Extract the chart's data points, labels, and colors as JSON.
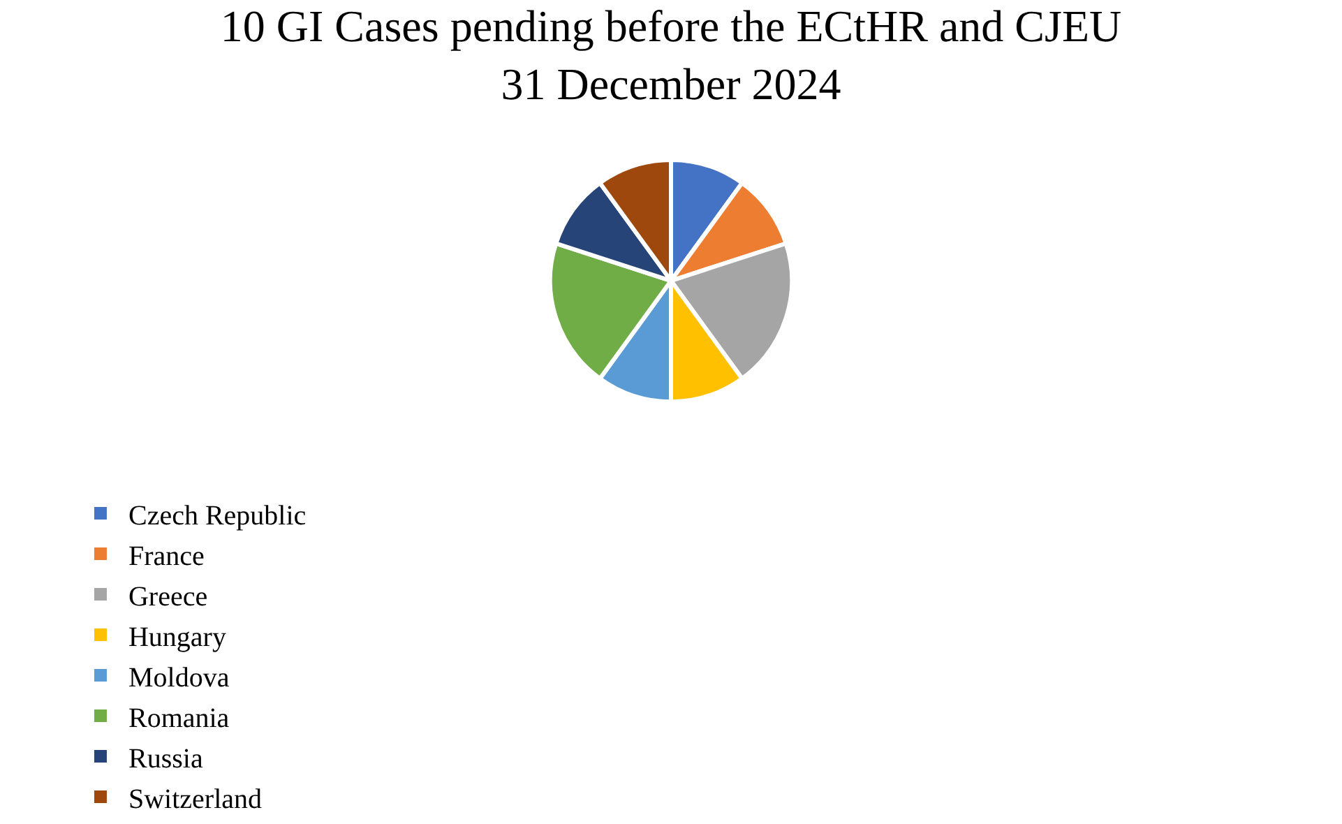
{
  "chart_data": {
    "type": "pie",
    "title": "10 GI Cases pending before the ECtHR and CJEU\n31 December 2024",
    "categories": [
      "Czech Republic",
      "France",
      "Greece",
      "Hungary",
      "Moldova",
      "Romania",
      "Russia",
      "Switzerland"
    ],
    "values": [
      10,
      10,
      20,
      10,
      10,
      20,
      10,
      10
    ],
    "colors": [
      "#4472c4",
      "#ed7d31",
      "#a5a5a5",
      "#ffc000",
      "#5b9bd5",
      "#70ad47",
      "#264478",
      "#9e480e"
    ],
    "legend": "bottom"
  }
}
